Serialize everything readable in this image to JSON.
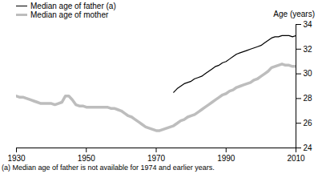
{
  "chart_data": {
    "type": "line",
    "y_label": "Age (years)",
    "legend": "top-left",
    "grid": false,
    "annotations": [
      "(a) Median age of father is not available for 1974 and earlier years."
    ],
    "xlim": [
      1930,
      2010
    ],
    "xticks": [
      1930,
      1950,
      1970,
      1990,
      2010
    ],
    "ylim": [
      24,
      34
    ],
    "yticks": [
      24,
      26,
      28,
      30,
      32,
      34
    ],
    "x": [
      1930,
      1931,
      1932,
      1933,
      1934,
      1935,
      1936,
      1937,
      1938,
      1939,
      1940,
      1941,
      1942,
      1943,
      1944,
      1945,
      1946,
      1947,
      1948,
      1949,
      1950,
      1951,
      1952,
      1953,
      1954,
      1955,
      1956,
      1957,
      1958,
      1959,
      1960,
      1961,
      1962,
      1963,
      1964,
      1965,
      1966,
      1967,
      1968,
      1969,
      1970,
      1971,
      1972,
      1973,
      1974,
      1975,
      1976,
      1977,
      1978,
      1979,
      1980,
      1981,
      1982,
      1983,
      1984,
      1985,
      1986,
      1987,
      1988,
      1989,
      1990,
      1991,
      1992,
      1993,
      1994,
      1995,
      1996,
      1997,
      1998,
      1999,
      2000,
      2001,
      2002,
      2003,
      2004,
      2005,
      2006,
      2007,
      2008,
      2009,
      2010
    ],
    "series": [
      {
        "name": "Median age of father (a)",
        "color": "#000000",
        "values": [
          null,
          null,
          null,
          null,
          null,
          null,
          null,
          null,
          null,
          null,
          null,
          null,
          null,
          null,
          null,
          null,
          null,
          null,
          null,
          null,
          null,
          null,
          null,
          null,
          null,
          null,
          null,
          null,
          null,
          null,
          null,
          null,
          null,
          null,
          null,
          null,
          null,
          null,
          null,
          null,
          null,
          null,
          null,
          null,
          null,
          28.5,
          28.8,
          29.0,
          29.2,
          29.3,
          29.4,
          29.6,
          29.7,
          29.8,
          30.0,
          30.2,
          30.4,
          30.6,
          30.7,
          30.9,
          31.0,
          31.2,
          31.4,
          31.6,
          31.7,
          31.8,
          31.9,
          32.0,
          32.1,
          32.2,
          32.3,
          32.5,
          32.7,
          32.9,
          33.0,
          33.0,
          33.1,
          33.1,
          33.1,
          33.0,
          33.1
        ]
      },
      {
        "name": "Median age of mother",
        "color": "#bdbdbd",
        "values": [
          28.2,
          28.1,
          28.1,
          28.0,
          27.9,
          27.8,
          27.7,
          27.6,
          27.6,
          27.6,
          27.6,
          27.5,
          27.6,
          27.7,
          28.2,
          28.2,
          27.9,
          27.5,
          27.4,
          27.4,
          27.3,
          27.3,
          27.3,
          27.3,
          27.3,
          27.3,
          27.3,
          27.2,
          27.2,
          27.1,
          27.0,
          26.8,
          26.6,
          26.5,
          26.3,
          26.1,
          25.9,
          25.7,
          25.6,
          25.5,
          25.4,
          25.4,
          25.5,
          25.6,
          25.7,
          25.8,
          26.0,
          26.2,
          26.3,
          26.5,
          26.6,
          26.7,
          26.9,
          27.1,
          27.3,
          27.5,
          27.7,
          27.9,
          28.1,
          28.3,
          28.4,
          28.6,
          28.7,
          28.9,
          29.0,
          29.1,
          29.2,
          29.3,
          29.5,
          29.6,
          29.8,
          30.0,
          30.2,
          30.5,
          30.6,
          30.7,
          30.8,
          30.7,
          30.7,
          30.6,
          30.6
        ]
      }
    ]
  }
}
